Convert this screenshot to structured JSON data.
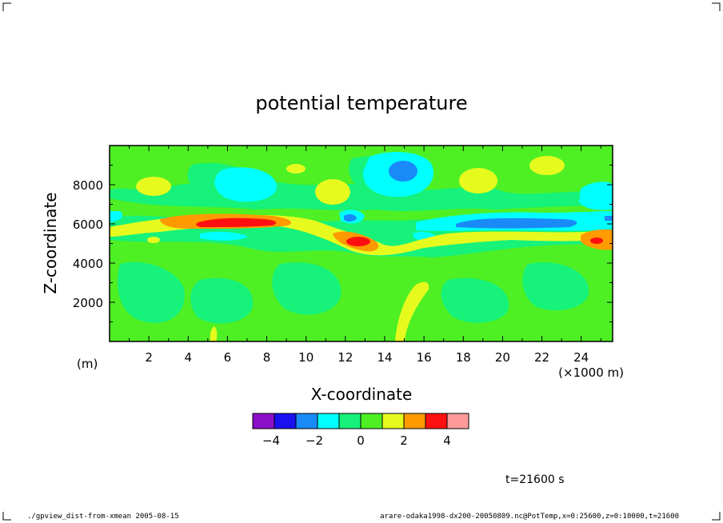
{
  "chart_data": {
    "type": "heatmap",
    "title": "potential temperature",
    "xlabel": "X-coordinate",
    "ylabel": "Z-coordinate",
    "x_unit": "(×1000 m)",
    "y_unit": "(m)",
    "xlim": [
      0,
      25.6
    ],
    "ylim": [
      0,
      10000
    ],
    "x_ticks": [
      2,
      4,
      6,
      8,
      10,
      12,
      14,
      16,
      18,
      20,
      22,
      24
    ],
    "y_ticks": [
      2000,
      4000,
      6000,
      8000
    ],
    "grid": false,
    "colorbar": {
      "levels": [
        -5,
        -4,
        -3,
        -2,
        -1,
        0,
        1,
        2,
        3,
        4,
        5
      ],
      "colors": [
        "#8a10c8",
        "#1a10f0",
        "#1a8af8",
        "#00ffff",
        "#16f27a",
        "#4ef024",
        "#e6fa1e",
        "#ff9a00",
        "#ff1010",
        "#ff9a9a"
      ],
      "tick_labels": [
        -4,
        -2,
        0,
        2,
        4
      ]
    },
    "features": [
      {
        "x": 15,
        "z": 8600,
        "value": -2.5
      },
      {
        "x": 6,
        "z": 6050,
        "value": 3.5
      },
      {
        "x": 12.6,
        "z": 5050,
        "value": 3.5
      },
      {
        "x": 24.7,
        "z": 5100,
        "value": 3.5
      },
      {
        "x": 19.5,
        "z": 6000,
        "value": -2.5
      },
      {
        "x": 12.2,
        "z": 6200,
        "value": -2.5
      }
    ],
    "time_label": "t=21600 s"
  },
  "footer": {
    "left": "./gpview_dist-from-xmean   2005-08-15",
    "right": "arare-odaka1998-dx200-20050809.nc@PotTemp,x=0:25600,z=0:10000,t=21600"
  }
}
